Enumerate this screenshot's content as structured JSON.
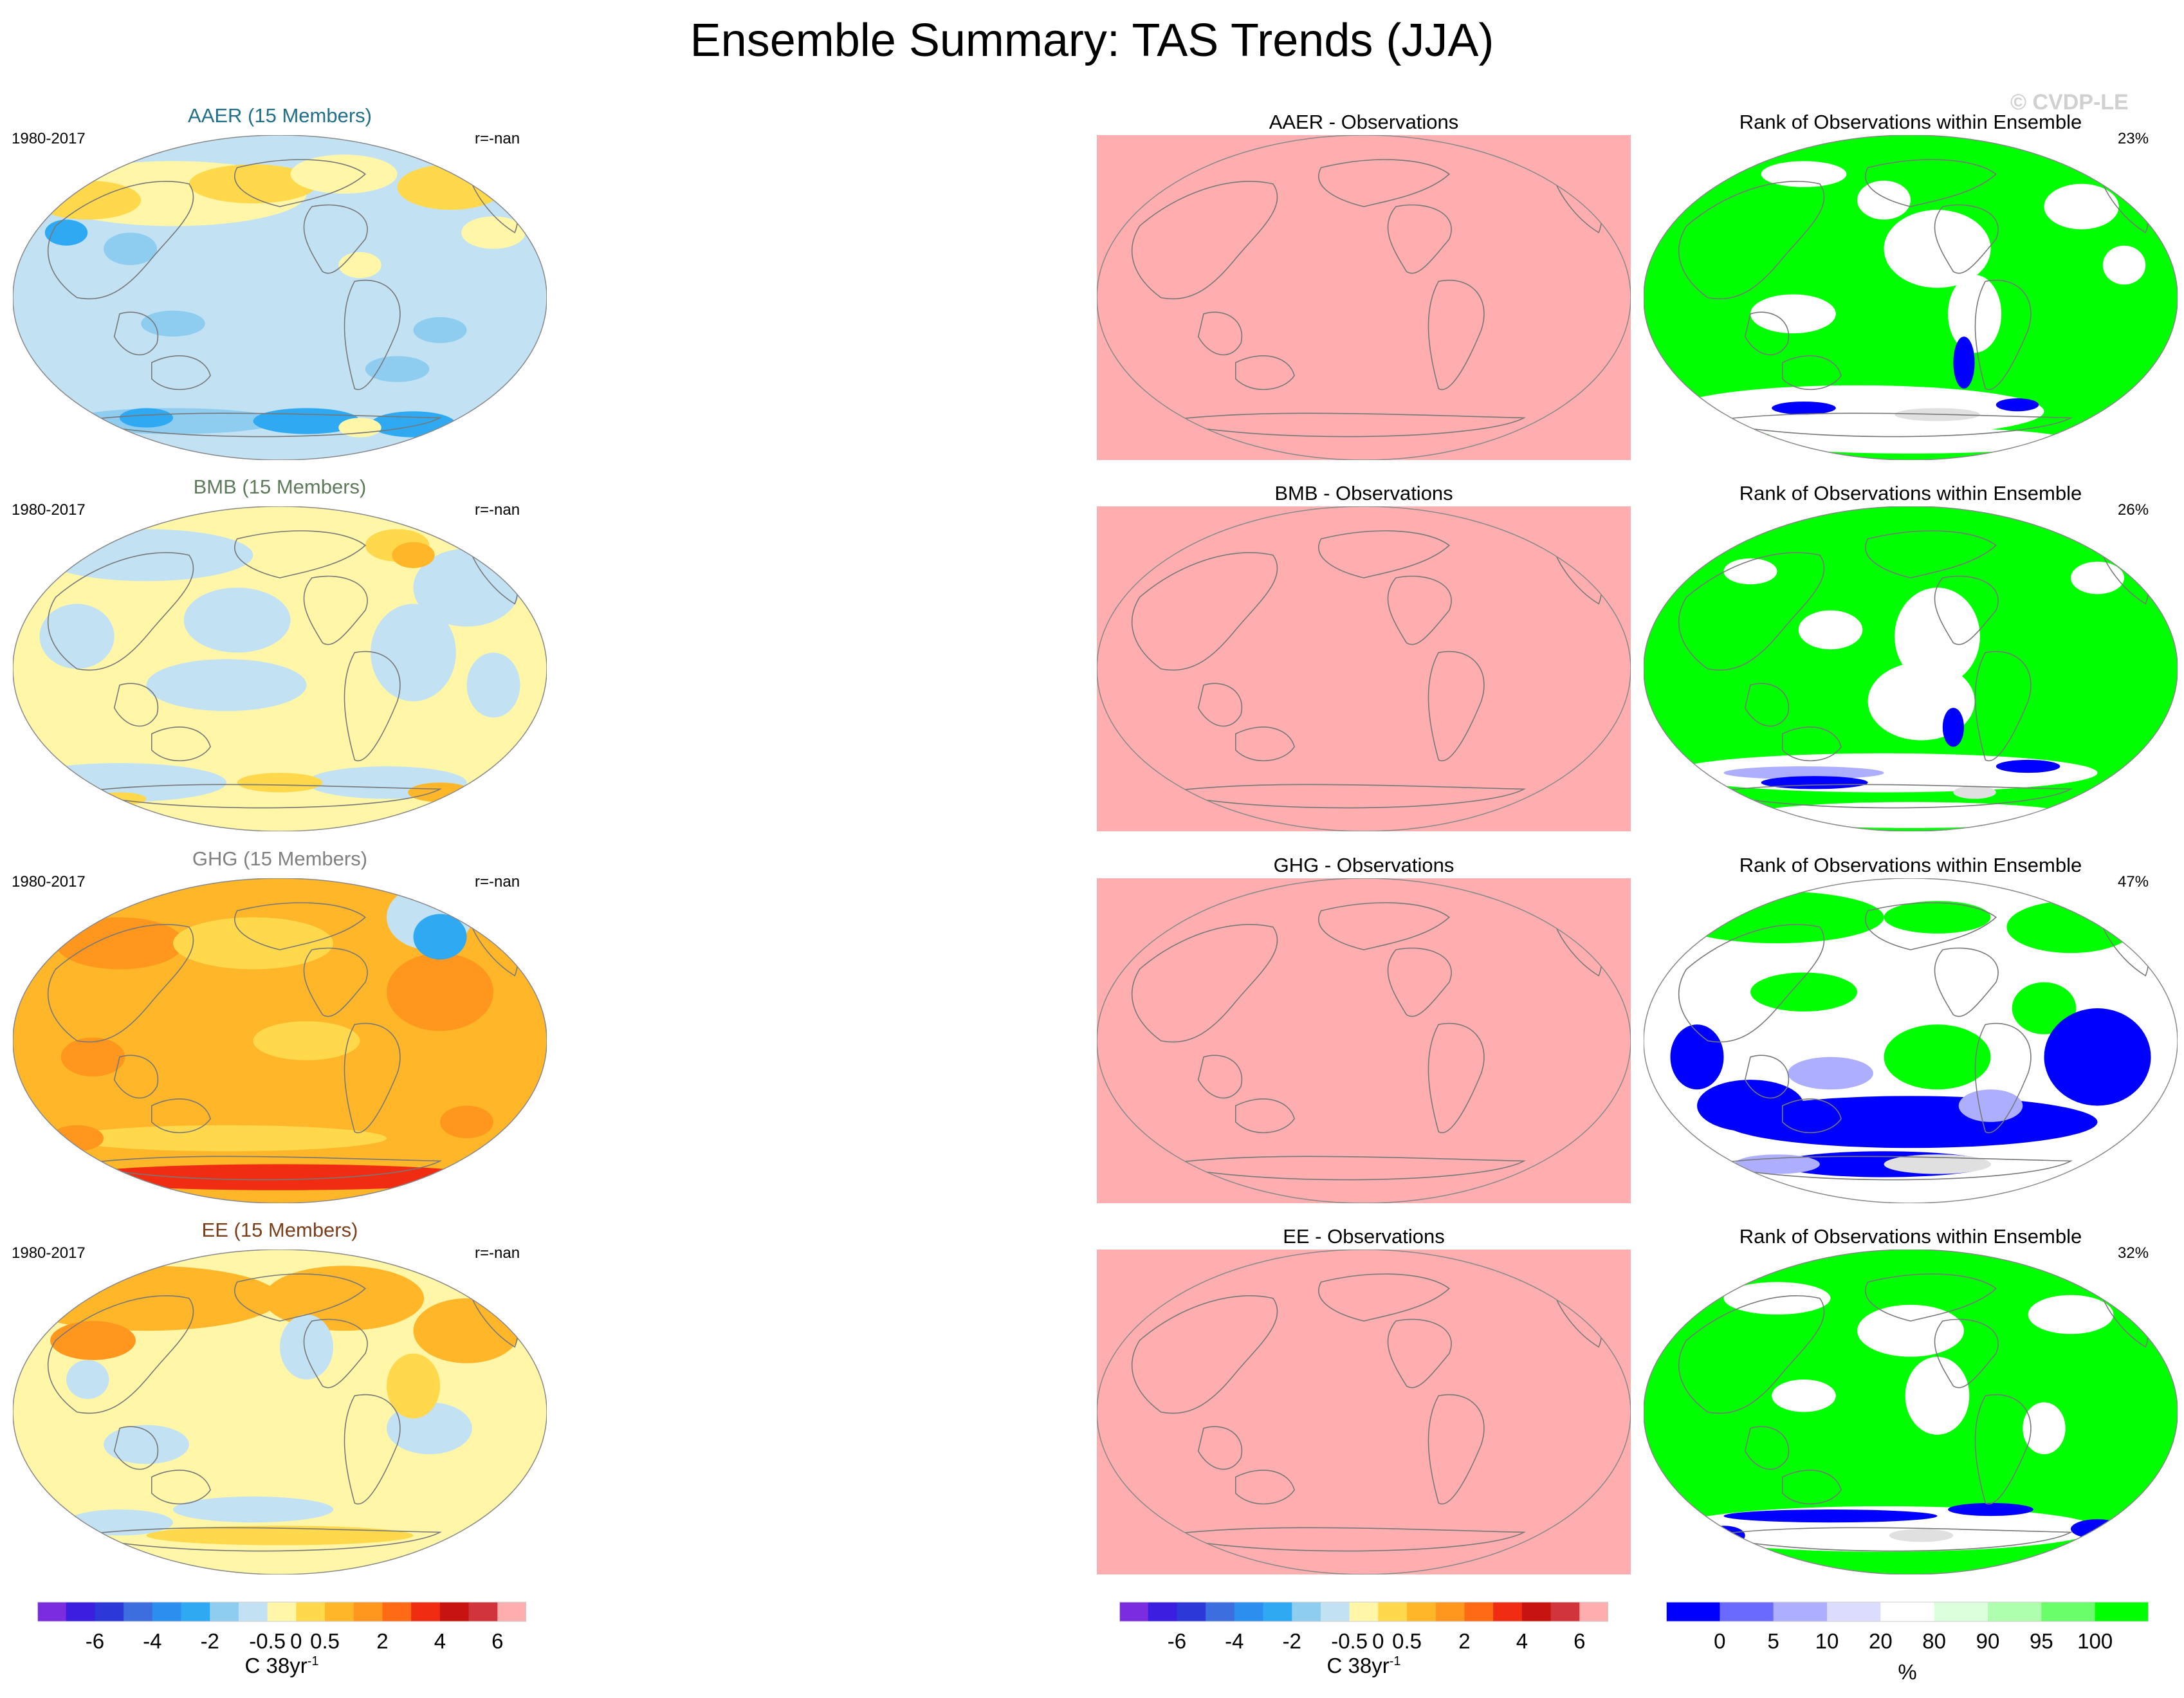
{
  "page_title": "Ensemble Summary: TAS Trends (JJA)",
  "watermark": "© CVDP-LE",
  "period": "1980-2017",
  "rows": [
    {
      "id": "aaer",
      "ens_title": "AAER (15 Members)",
      "ens_title_color": "#1f6f8b",
      "r_label": "r=-nan",
      "diff_title": "AAER - Observations",
      "rank_title": "Rank of Observations within Ensemble",
      "rank_pct": "23%",
      "ens_pattern": "aaer",
      "rank_pattern": "r1"
    },
    {
      "id": "bmb",
      "ens_title": "BMB (15 Members)",
      "ens_title_color": "#5c7a5a",
      "r_label": "r=-nan",
      "diff_title": "BMB - Observations",
      "rank_title": "Rank of Observations within Ensemble",
      "rank_pct": "26%",
      "ens_pattern": "bmb",
      "rank_pattern": "r2"
    },
    {
      "id": "ghg",
      "ens_title": "GHG (15 Members)",
      "ens_title_color": "#808080",
      "r_label": "r=-nan",
      "diff_title": "GHG - Observations",
      "rank_title": "Rank of Observations within Ensemble",
      "rank_pct": "47%",
      "ens_pattern": "ghg",
      "rank_pattern": "r3"
    },
    {
      "id": "ee",
      "ens_title": "EE (15 Members)",
      "ens_title_color": "#7a3e1a",
      "r_label": "r=-nan",
      "diff_title": "EE - Observations",
      "rank_title": "Rank of Observations within Ensemble",
      "rank_pct": "32%",
      "ens_pattern": "ee",
      "rank_pattern": "r4"
    }
  ],
  "diff_fill_color": "#ffaeb0",
  "trend_colorbar": {
    "colors": [
      "#7b2be0",
      "#3c1ee0",
      "#2c38d8",
      "#3c6ee0",
      "#2c8ff0",
      "#2ea9f2",
      "#8ecdf0",
      "#c2e2f4",
      "#fff6a8",
      "#ffd84c",
      "#ffb628",
      "#ff961e",
      "#ff6a14",
      "#f02c12",
      "#c81410",
      "#d2343c",
      "#ffaeb0"
    ],
    "tick_labels": [
      "-6",
      "-4",
      "-2",
      "-0.5",
      "0",
      "0.5",
      "2",
      "4",
      "6"
    ],
    "units": "C 38yr",
    "units_sup": "-1"
  },
  "rank_colorbar": {
    "colors": [
      "#0000ff",
      "#6a6aff",
      "#aeaeff",
      "#dcdcff",
      "#ffffff",
      "#dcffdc",
      "#aeffae",
      "#6aff6a",
      "#00ff00"
    ],
    "tick_labels": [
      "0",
      "5",
      "10",
      "20",
      "80",
      "90",
      "95",
      "100"
    ],
    "units": "%"
  },
  "palettes": {
    "lightblue": "#c2e2f4",
    "midblue": "#8ecdf0",
    "blue": "#2ea9f2",
    "yellow": "#fff6a8",
    "gold": "#ffd84c",
    "orange": "#ffb628",
    "deeporange": "#ff961e",
    "red": "#f02c12",
    "green": "#00ff00",
    "white": "#ffffff",
    "rankblue": "#0000ff",
    "ranklavender": "#aeaeff",
    "rankgray": "#e0e0e0"
  }
}
